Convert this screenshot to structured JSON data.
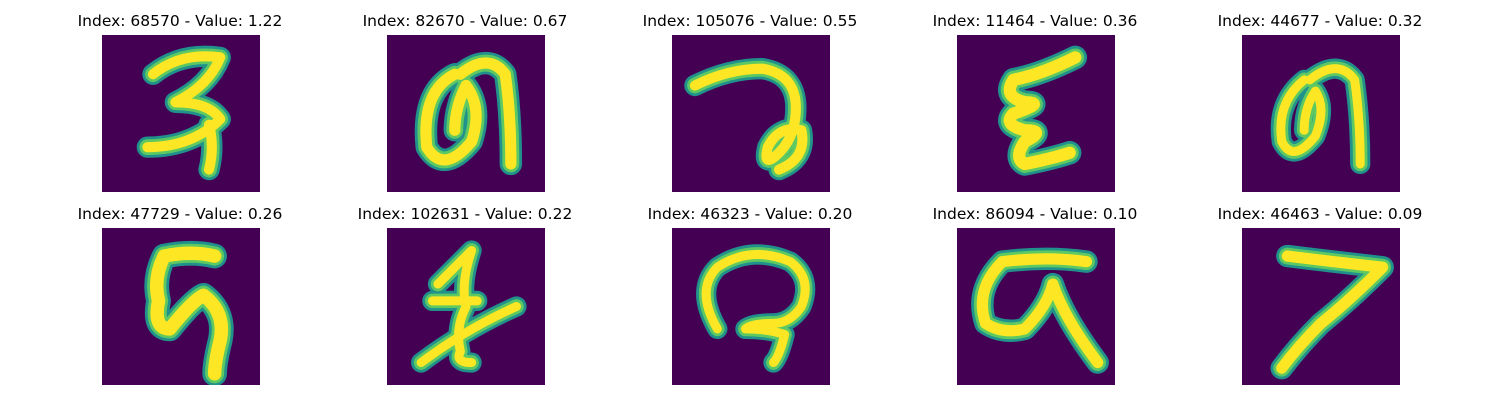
{
  "figure": {
    "panels": [
      {
        "title": "Index: 68570 - Value: 1.22",
        "glyph": "digit-3-like"
      },
      {
        "title": "Index: 82670 - Value: 0.67",
        "glyph": "loop-glyph"
      },
      {
        "title": "Index: 105076 - Value: 0.55",
        "glyph": "hook-glyph"
      },
      {
        "title": "Index: 11464 - Value: 0.36",
        "glyph": "zigzag-glyph"
      },
      {
        "title": "Index: 44677 - Value: 0.32",
        "glyph": "loop-glyph-2"
      },
      {
        "title": "Index: 47729 - Value: 0.26",
        "glyph": "flag-glyph"
      },
      {
        "title": "Index: 102631 - Value: 0.22",
        "glyph": "cross-glyph"
      },
      {
        "title": "Index: 46323 - Value: 0.20",
        "glyph": "arch-glyph"
      },
      {
        "title": "Index: 86094 - Value: 0.10",
        "glyph": "bar-loop-glyph"
      },
      {
        "title": "Index: 46463 - Value: 0.09",
        "glyph": "digit-7-like"
      }
    ],
    "colors": {
      "background": "#440154",
      "stroke_core": "#fde725",
      "stroke_edge": "#5ec962",
      "stroke_outer": "#21918c"
    }
  }
}
